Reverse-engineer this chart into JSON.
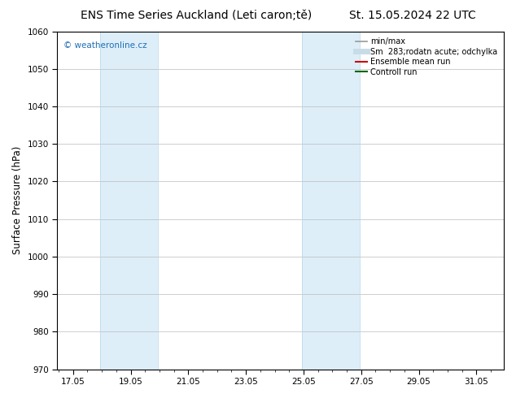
{
  "title_left": "ENS Time Series Auckland (Leti caron;tě)",
  "title_right": "St. 15.05.2024 22 UTC",
  "ylabel": "Surface Pressure (hPa)",
  "ylim": [
    970,
    1060
  ],
  "yticks": [
    970,
    980,
    990,
    1000,
    1010,
    1020,
    1030,
    1040,
    1050,
    1060
  ],
  "xlim": [
    16.5,
    32.0
  ],
  "xticks": [
    17.05,
    19.05,
    21.05,
    23.05,
    25.05,
    27.05,
    29.05,
    31.05
  ],
  "xticklabels": [
    "17.05",
    "19.05",
    "21.05",
    "23.05",
    "25.05",
    "27.05",
    "29.05",
    "31.05"
  ],
  "shade_bands": [
    {
      "xmin": 18.0,
      "xmax": 20.0,
      "color": "#ddeef9"
    },
    {
      "xmin": 25.0,
      "xmax": 27.0,
      "color": "#ddeef9"
    }
  ],
  "shade_border_color": "#b8d4e8",
  "watermark": "© weatheronline.cz",
  "watermark_color": "#1e6eb5",
  "legend_entries": [
    {
      "label": "min/max",
      "color": "#999999",
      "lw": 1.2,
      "style": "solid"
    },
    {
      "label": "Sm  283;rodatn acute; odchylka",
      "color": "#c8dce8",
      "lw": 5,
      "style": "solid"
    },
    {
      "label": "Ensemble mean run",
      "color": "#cc0000",
      "lw": 1.5,
      "style": "solid"
    },
    {
      "label": "Controll run",
      "color": "#006600",
      "lw": 1.5,
      "style": "solid"
    }
  ],
  "bg_color": "#ffffff",
  "plot_bg_color": "#ffffff",
  "grid_color": "#bbbbbb",
  "title_fontsize": 10,
  "tick_fontsize": 7.5,
  "ylabel_fontsize": 8.5,
  "legend_fontsize": 7,
  "watermark_fontsize": 7.5
}
